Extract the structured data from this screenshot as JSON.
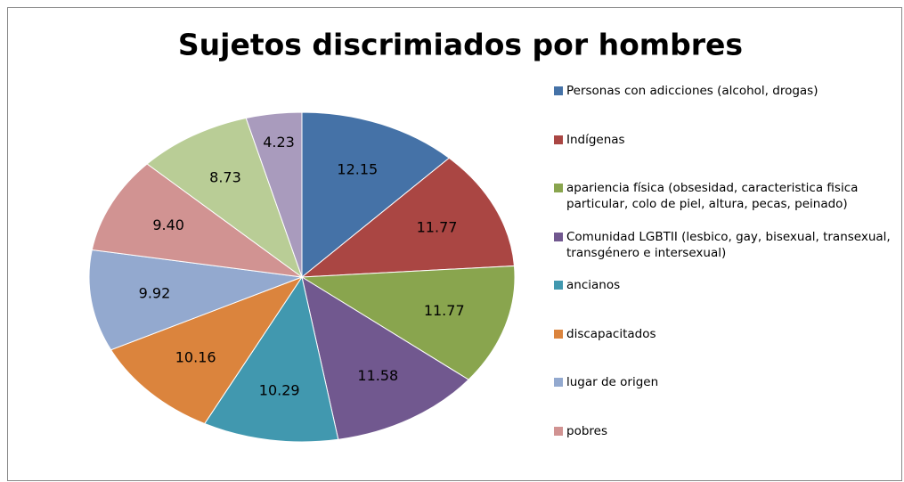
{
  "chart_data": {
    "type": "pie",
    "title": "Sujetos discrimiados por hombres",
    "categories": [
      "Personas con adicciones (alcohol, drogas)",
      "Indígenas",
      "apariencia física (obsesidad, caracteristica fisica particular, colo de piel, altura, pecas, peinado)",
      "Comunidad LGBTII (lesbico, gay, bisexual, transexual, transgénero e intersexual)",
      "ancianos",
      "discapacitados",
      "lugar de origen",
      "pobres",
      null,
      null
    ],
    "values": [
      12.15,
      11.77,
      11.77,
      11.58,
      10.29,
      10.16,
      9.92,
      9.4,
      8.73,
      4.23
    ],
    "value_labels": [
      "12.15",
      "11.77",
      "11.77",
      "11.58",
      "10.29",
      "10.16",
      "9.92",
      "9.40",
      "8.73",
      "4.23"
    ],
    "colors": [
      "#4572a7",
      "#aa4643",
      "#89a54e",
      "#71588f",
      "#4198af",
      "#db843d",
      "#93a9cf",
      "#d19392",
      "#b9cd96",
      "#a99bbd"
    ],
    "legend": "right"
  }
}
